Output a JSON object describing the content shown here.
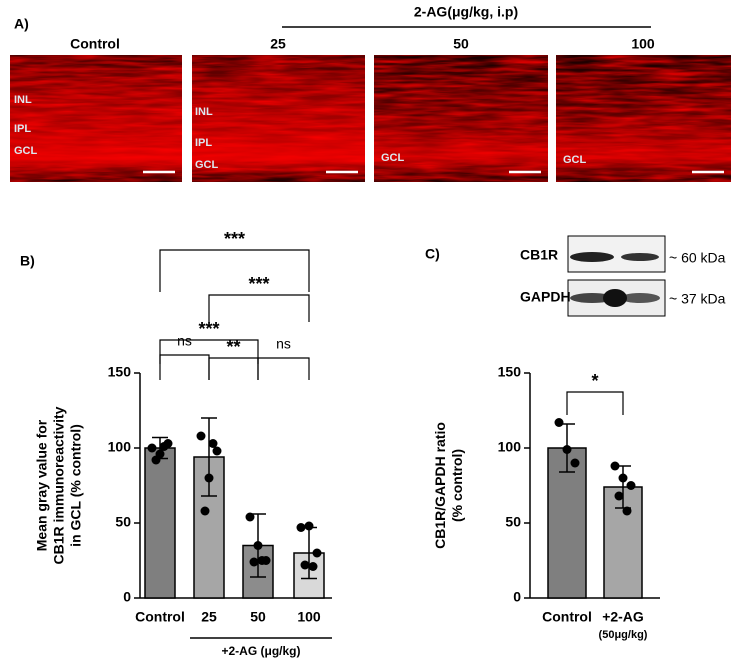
{
  "panel_a": {
    "label": "A)",
    "treatment": "2-AG(μg/kg, i.p)",
    "columns": [
      "Control",
      "25",
      "50",
      "100"
    ],
    "layers": [
      [
        "INL",
        "IPL",
        "GCL"
      ],
      [
        "INL",
        "IPL",
        "GCL"
      ],
      [
        "GCL"
      ],
      [
        "GCL"
      ]
    ]
  },
  "panel_c_blot": {
    "label": "C)",
    "rows": [
      "CB1R",
      "GAPDH"
    ],
    "sizes": [
      "~ 60 kDa",
      "~ 37 kDa"
    ]
  },
  "chart_data": [
    {
      "type": "bar",
      "panel": "B)",
      "y_label": [
        "Mean gray value for",
        "CB1R immunoreactivity",
        "in GCL (% control)"
      ],
      "categories": [
        "Control",
        "25",
        "50",
        "100"
      ],
      "values": [
        100,
        94,
        35,
        30
      ],
      "errors": [
        7,
        26,
        21,
        17
      ],
      "points": [
        [
          100,
          96,
          103,
          92,
          101
        ],
        [
          108,
          80,
          98,
          58,
          103
        ],
        [
          54,
          35,
          25,
          24,
          25
        ],
        [
          47,
          48,
          30,
          22,
          21
        ]
      ],
      "colors": [
        "#7f7f7f",
        "#a6a6a6",
        "#8c8c8c",
        "#d9d9d9"
      ],
      "ylim": [
        0,
        150
      ],
      "yticks": [
        0,
        50,
        100,
        150
      ],
      "group_label": "+2-AG (μg/kg)",
      "comparisons": [
        {
          "pair": [
            0,
            1
          ],
          "label": "ns"
        },
        {
          "pair": [
            1,
            2
          ],
          "label": "**"
        },
        {
          "pair": [
            2,
            3
          ],
          "label": "ns"
        },
        {
          "pair": [
            0,
            2
          ],
          "label": "***"
        },
        {
          "pair": [
            1,
            3
          ],
          "label": "***"
        },
        {
          "pair": [
            0,
            3
          ],
          "label": "***"
        }
      ]
    },
    {
      "type": "bar",
      "y_label": [
        "CB1R/GAPDH ratio",
        "(% control)"
      ],
      "categories": [
        "Control",
        "+2-AG"
      ],
      "category_notes": [
        null,
        "(50μg/kg)"
      ],
      "values": [
        100,
        74
      ],
      "errors": [
        16,
        14
      ],
      "points": [
        [
          117,
          99,
          90
        ],
        [
          88,
          80,
          75,
          68,
          58
        ]
      ],
      "colors": [
        "#7f7f7f",
        "#a6a6a6"
      ],
      "ylim": [
        0,
        150
      ],
      "yticks": [
        0,
        50,
        100,
        150
      ],
      "comparisons": [
        {
          "pair": [
            0,
            1
          ],
          "label": "*"
        }
      ]
    }
  ]
}
